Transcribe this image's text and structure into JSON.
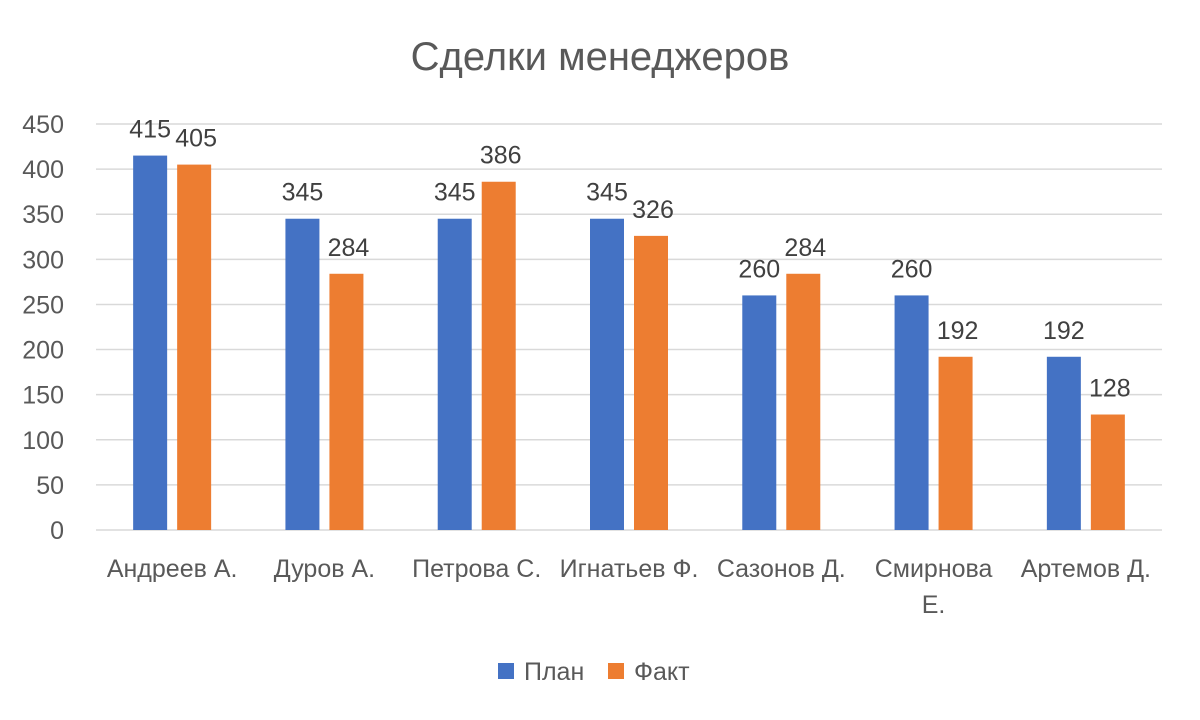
{
  "chart_data": {
    "type": "bar",
    "title": "Сделки менеджеров",
    "categories": [
      [
        "Андреев А."
      ],
      [
        "Дуров А."
      ],
      [
        "Петрова С."
      ],
      [
        "Игнатьев Ф."
      ],
      [
        "Сазонов Д."
      ],
      [
        "Смирнова",
        "Е."
      ],
      [
        "Артемов Д."
      ]
    ],
    "series": [
      {
        "name": "План",
        "color": "#4472C4",
        "values": [
          415,
          345,
          345,
          345,
          260,
          260,
          192
        ]
      },
      {
        "name": "Факт",
        "color": "#ED7D31",
        "values": [
          405,
          284,
          386,
          326,
          284,
          192,
          128
        ]
      }
    ],
    "ylim": [
      0,
      450
    ],
    "yticks": [
      0,
      50,
      100,
      150,
      200,
      250,
      300,
      350,
      400,
      450
    ],
    "grid": true,
    "legend": "bottom",
    "data_labels": true
  }
}
